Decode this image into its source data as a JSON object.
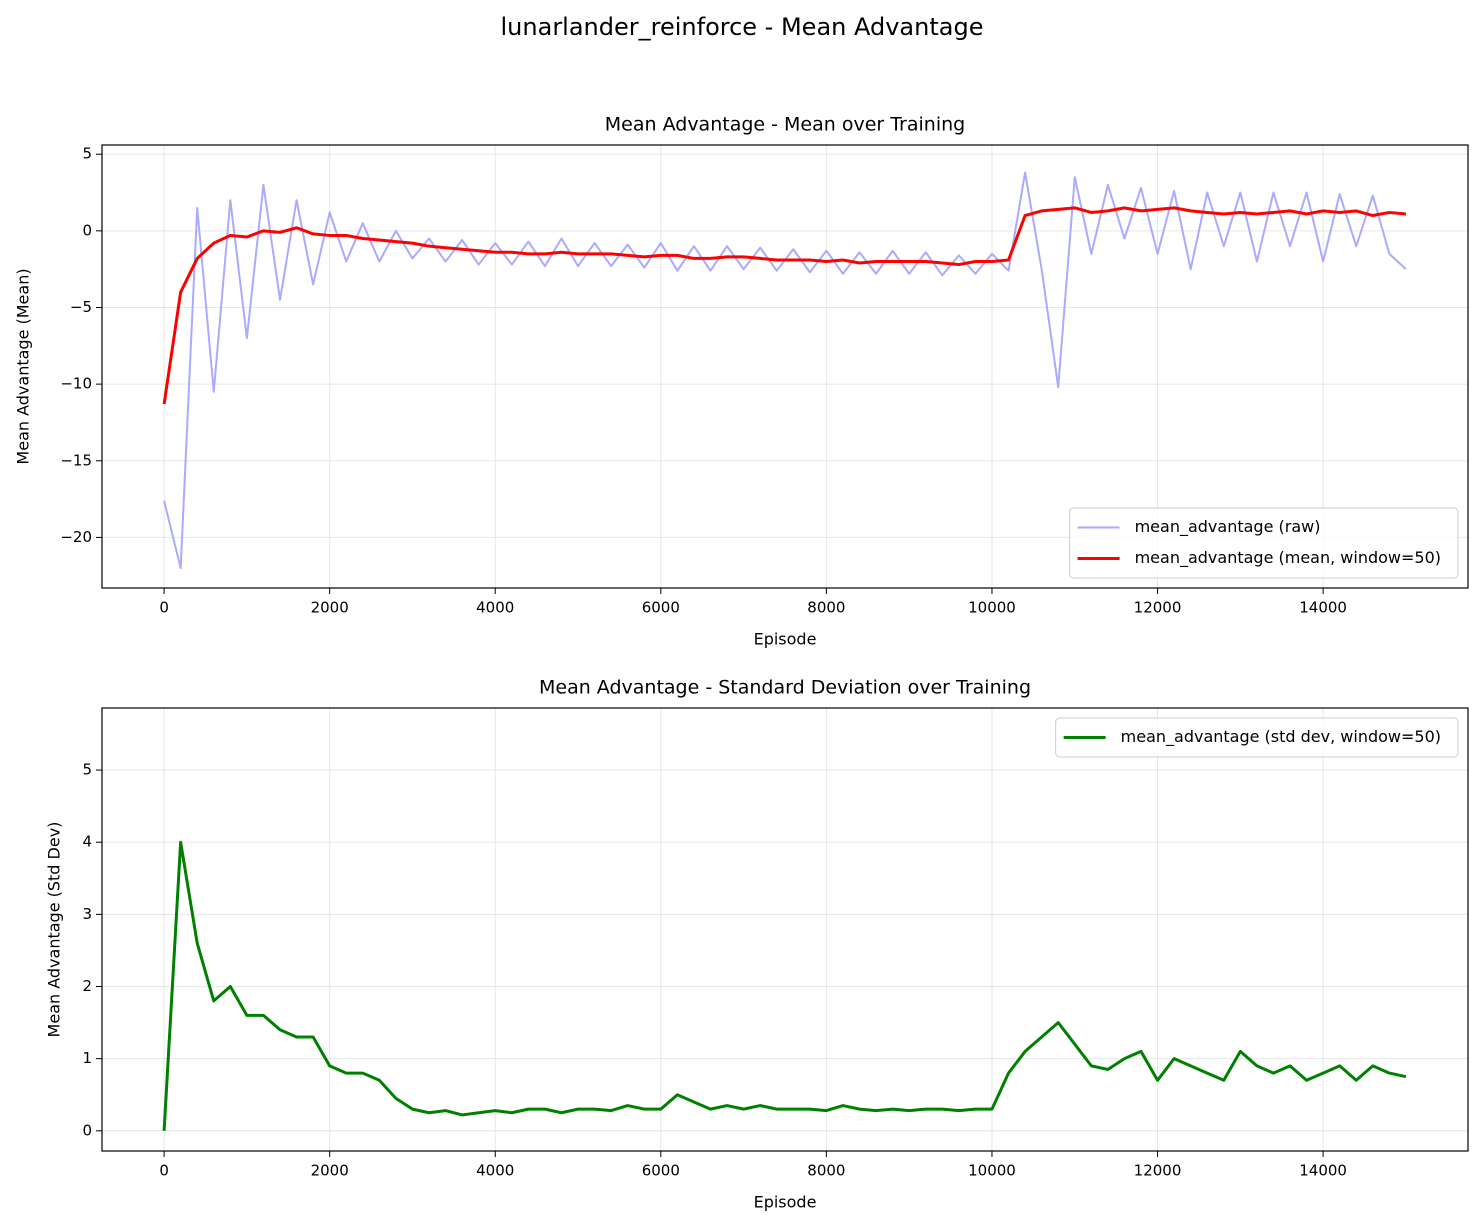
{
  "title": "lunarlander_reinforce - Mean Advantage",
  "chart_data": [
    {
      "type": "line",
      "title": "Mean Advantage - Mean over Training",
      "xlabel": "Episode",
      "ylabel": "Mean Advantage (Mean)",
      "x": [
        0,
        200,
        400,
        600,
        800,
        1000,
        1200,
        1400,
        1600,
        1800,
        2000,
        2200,
        2400,
        2600,
        2800,
        3000,
        3200,
        3400,
        3600,
        3800,
        4000,
        4200,
        4400,
        4600,
        4800,
        5000,
        5200,
        5400,
        5600,
        5800,
        6000,
        6200,
        6400,
        6600,
        6800,
        7000,
        7200,
        7400,
        7600,
        7800,
        8000,
        8200,
        8400,
        8600,
        8800,
        9000,
        9200,
        9400,
        9600,
        9800,
        10000,
        10200,
        10400,
        10600,
        10800,
        11000,
        11200,
        11400,
        11600,
        11800,
        12000,
        12200,
        12400,
        12600,
        12800,
        13000,
        13200,
        13400,
        13600,
        13800,
        14000,
        14200,
        14400,
        14600,
        14800,
        15000
      ],
      "series": [
        {
          "name": "mean_advantage (raw)",
          "color": "#aaaaff",
          "width": 2,
          "values": [
            -17.6,
            -22,
            1.5,
            -10.5,
            2.0,
            -7.0,
            3.0,
            -4.5,
            2.0,
            -3.5,
            1.2,
            -2.0,
            0.5,
            -2.0,
            0,
            -1.8,
            -0.5,
            -2.0,
            -0.6,
            -2.2,
            -0.8,
            -2.2,
            -0.7,
            -2.3,
            -0.5,
            -2.3,
            -0.8,
            -2.3,
            -0.9,
            -2.4,
            -0.8,
            -2.6,
            -1.0,
            -2.6,
            -1.0,
            -2.5,
            -1.1,
            -2.6,
            -1.2,
            -2.7,
            -1.3,
            -2.8,
            -1.4,
            -2.8,
            -1.3,
            -2.8,
            -1.4,
            -2.9,
            -1.6,
            -2.8,
            -1.5,
            -2.6,
            3.8,
            -2.5,
            -10.2,
            3.5,
            -1.5,
            3.0,
            -0.5,
            2.8,
            -1.5,
            2.6,
            -2.5,
            2.5,
            -1.0,
            2.5,
            -2.0,
            2.5,
            -1.0,
            2.5,
            -2.0,
            2.4,
            -1.0,
            2.3,
            -1.5,
            -2.5
          ]
        },
        {
          "name": "mean_advantage (mean, window=50)",
          "color": "#ff0000",
          "width": 3,
          "values": [
            -11.3,
            -4.0,
            -1.8,
            -0.8,
            -0.3,
            -0.4,
            0,
            -0.1,
            0.2,
            -0.2,
            -0.3,
            -0.3,
            -0.5,
            -0.6,
            -0.7,
            -0.8,
            -1.0,
            -1.1,
            -1.2,
            -1.3,
            -1.4,
            -1.4,
            -1.5,
            -1.5,
            -1.4,
            -1.5,
            -1.5,
            -1.5,
            -1.6,
            -1.7,
            -1.6,
            -1.6,
            -1.8,
            -1.8,
            -1.7,
            -1.7,
            -1.8,
            -1.9,
            -1.9,
            -1.9,
            -2.0,
            -1.9,
            -2.1,
            -2.0,
            -2.0,
            -2.0,
            -2.0,
            -2.1,
            -2.2,
            -2.0,
            -2.0,
            -1.9,
            1.0,
            1.3,
            1.4,
            1.5,
            1.2,
            1.3,
            1.5,
            1.3,
            1.4,
            1.5,
            1.3,
            1.2,
            1.1,
            1.2,
            1.1,
            1.2,
            1.3,
            1.1,
            1.3,
            1.2,
            1.3,
            1.0,
            1.2,
            1.1
          ]
        }
      ],
      "xlim": [
        -750,
        15750
      ],
      "ylim": [
        -23.3,
        5.6
      ],
      "xticks": [
        0,
        2000,
        4000,
        6000,
        8000,
        10000,
        12000,
        14000
      ],
      "yticks": [
        {
          "value": -20,
          "label": "−20"
        },
        {
          "value": -15,
          "label": "−15"
        },
        {
          "value": -10,
          "label": "−10"
        },
        {
          "value": -5,
          "label": "−5"
        },
        0,
        5
      ],
      "grid": true,
      "legend": "lower right"
    },
    {
      "type": "line",
      "title": "Mean Advantage - Standard Deviation over Training",
      "xlabel": "Episode",
      "ylabel": "Mean Advantage (Std Dev)",
      "x": [
        0,
        200,
        400,
        600,
        800,
        1000,
        1200,
        1400,
        1600,
        1800,
        2000,
        2200,
        2400,
        2600,
        2800,
        3000,
        3200,
        3400,
        3600,
        3800,
        4000,
        4200,
        4400,
        4600,
        4800,
        5000,
        5200,
        5400,
        5600,
        5800,
        6000,
        6200,
        6400,
        6600,
        6800,
        7000,
        7200,
        7400,
        7600,
        7800,
        8000,
        8200,
        8400,
        8600,
        8800,
        9000,
        9200,
        9400,
        9600,
        9800,
        10000,
        10200,
        10400,
        10600,
        10800,
        11000,
        11200,
        11400,
        11600,
        11800,
        12000,
        12200,
        12400,
        12600,
        12800,
        13000,
        13200,
        13400,
        13600,
        13800,
        14000,
        14200,
        14400,
        14600,
        14800,
        15000
      ],
      "series": [
        {
          "name": "mean_advantage (std dev, window=50)",
          "color": "#008000",
          "width": 3,
          "values": [
            0,
            4.0,
            2.6,
            1.8,
            2.0,
            1.6,
            1.6,
            1.4,
            1.3,
            1.3,
            0.9,
            0.8,
            0.8,
            0.7,
            0.45,
            0.3,
            0.25,
            0.28,
            0.22,
            0.25,
            0.28,
            0.25,
            0.3,
            0.3,
            0.25,
            0.3,
            0.3,
            0.28,
            0.35,
            0.3,
            0.3,
            0.5,
            0.4,
            0.3,
            0.35,
            0.3,
            0.35,
            0.3,
            0.3,
            0.3,
            0.28,
            0.35,
            0.3,
            0.28,
            0.3,
            0.28,
            0.3,
            0.3,
            0.28,
            0.3,
            0.3,
            0.8,
            1.1,
            1.3,
            1.5,
            1.2,
            0.9,
            0.85,
            1.0,
            1.1,
            0.7,
            1.0,
            0.9,
            0.8,
            0.7,
            1.1,
            0.9,
            0.8,
            0.9,
            0.7,
            0.8,
            0.9,
            0.7,
            0.9,
            0.8,
            0.75
          ]
        }
      ],
      "xlim": [
        -750,
        15750
      ],
      "ylim": [
        -0.28,
        5.86
      ],
      "xticks": [
        0,
        2000,
        4000,
        6000,
        8000,
        10000,
        12000,
        14000
      ],
      "yticks": [
        0,
        1,
        2,
        3,
        4,
        5
      ],
      "grid": true,
      "legend": "upper right"
    }
  ]
}
